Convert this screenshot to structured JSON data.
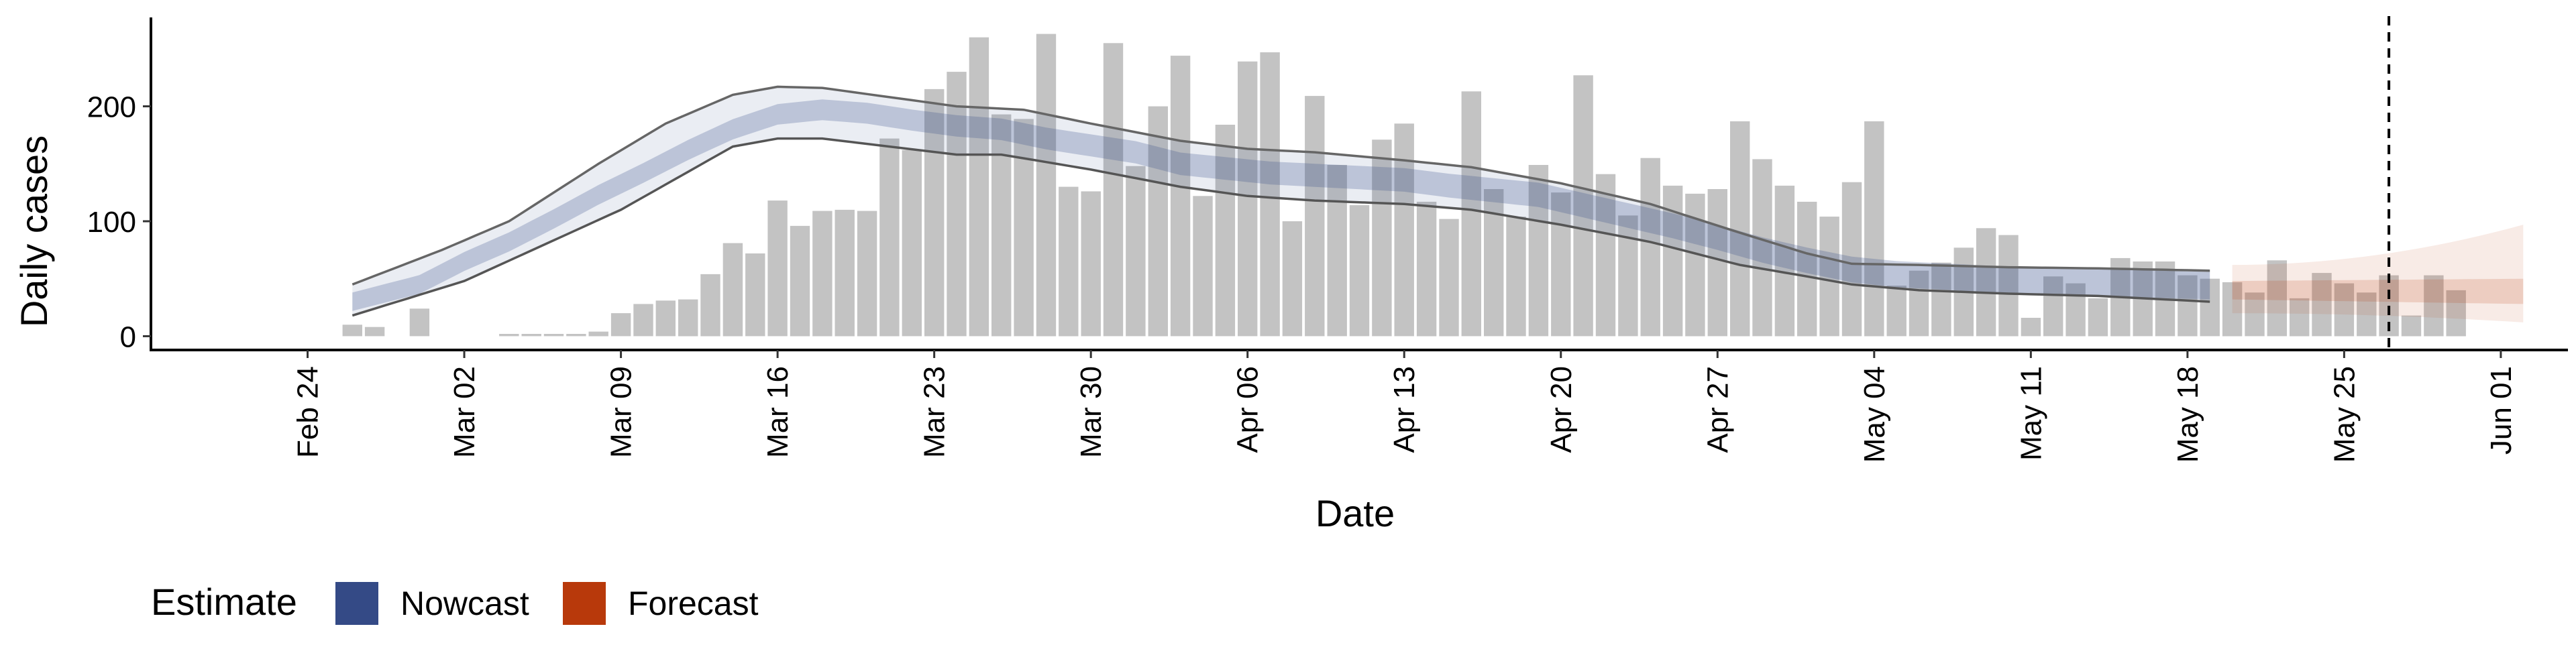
{
  "chart_data": {
    "type": "bar",
    "xlabel": "Date",
    "ylabel": "Daily cases",
    "ylim": [
      -12,
      275
    ],
    "y_ticks": [
      0,
      100,
      200
    ],
    "x_ticks": [
      {
        "date": "2020-02-24",
        "label": "Feb 24"
      },
      {
        "date": "2020-03-02",
        "label": "Mar 02"
      },
      {
        "date": "2020-03-09",
        "label": "Mar 09"
      },
      {
        "date": "2020-03-16",
        "label": "Mar 16"
      },
      {
        "date": "2020-03-23",
        "label": "Mar 23"
      },
      {
        "date": "2020-03-30",
        "label": "Mar 30"
      },
      {
        "date": "2020-04-06",
        "label": "Apr 06"
      },
      {
        "date": "2020-04-13",
        "label": "Apr 13"
      },
      {
        "date": "2020-04-20",
        "label": "Apr 20"
      },
      {
        "date": "2020-04-27",
        "label": "Apr 27"
      },
      {
        "date": "2020-05-04",
        "label": "May 04"
      },
      {
        "date": "2020-05-11",
        "label": "May 11"
      },
      {
        "date": "2020-05-18",
        "label": "May 18"
      },
      {
        "date": "2020-05-25",
        "label": "May 25"
      },
      {
        "date": "2020-06-01",
        "label": "Jun 01"
      }
    ],
    "x_range": [
      "2020-02-17",
      "2020-06-04"
    ],
    "grid": false,
    "legend": {
      "position": "bottom-left",
      "title": "Estimate",
      "items": [
        {
          "name": "Nowcast",
          "color": "#344a86"
        },
        {
          "name": "Forecast",
          "color": "#b8390b"
        }
      ]
    },
    "bar_color": "#bdbdbd",
    "vertical_line": {
      "date": "2020-05-27",
      "style": "dashed"
    },
    "reported_cases": {
      "start_date": "2020-02-26",
      "values": [
        10,
        8,
        0,
        24,
        0,
        0,
        0,
        2,
        2,
        2,
        2,
        4,
        20,
        28,
        31,
        32,
        54,
        81,
        72,
        118,
        96,
        109,
        110,
        109,
        172,
        162,
        215,
        230,
        260,
        193,
        189,
        263,
        130,
        126,
        255,
        148,
        200,
        244,
        122,
        184,
        239,
        247,
        100,
        209,
        149,
        114,
        171,
        185,
        117,
        102,
        213,
        128,
        104,
        149,
        125,
        227,
        141,
        105,
        155,
        131,
        124,
        128,
        187,
        154,
        131,
        117,
        104,
        134,
        187,
        44,
        57,
        64,
        77,
        94,
        88,
        16,
        52,
        46,
        33,
        68,
        65,
        65,
        53,
        50,
        47,
        38,
        66,
        33,
        55,
        46,
        38,
        53,
        18,
        53,
        40
      ]
    },
    "nowcast": {
      "start_date": "2020-02-26",
      "end_date": "2020-05-19",
      "color": "#344a86",
      "median_knots": [
        [
          "2020-02-26",
          30
        ],
        [
          "2020-02-29",
          45
        ],
        [
          "2020-03-02",
          65
        ],
        [
          "2020-03-04",
          82
        ],
        [
          "2020-03-06",
          102
        ],
        [
          "2020-03-08",
          123
        ],
        [
          "2020-03-10",
          142
        ],
        [
          "2020-03-12",
          162
        ],
        [
          "2020-03-14",
          180
        ],
        [
          "2020-03-16",
          193
        ],
        [
          "2020-03-18",
          197
        ],
        [
          "2020-03-20",
          194
        ],
        [
          "2020-03-22",
          188
        ],
        [
          "2020-03-24",
          183
        ],
        [
          "2020-03-26",
          180
        ],
        [
          "2020-03-28",
          172
        ],
        [
          "2020-03-30",
          166
        ],
        [
          "2020-04-01",
          160
        ],
        [
          "2020-04-03",
          150
        ],
        [
          "2020-04-05",
          146
        ],
        [
          "2020-04-07",
          142
        ],
        [
          "2020-04-09",
          140
        ],
        [
          "2020-04-11",
          138
        ],
        [
          "2020-04-13",
          136
        ],
        [
          "2020-04-15",
          131
        ],
        [
          "2020-04-17",
          127
        ],
        [
          "2020-04-19",
          123
        ],
        [
          "2020-04-21",
          114
        ],
        [
          "2020-04-23",
          105
        ],
        [
          "2020-04-25",
          96
        ],
        [
          "2020-04-27",
          86
        ],
        [
          "2020-04-29",
          75
        ],
        [
          "2020-05-01",
          66
        ],
        [
          "2020-05-03",
          58
        ],
        [
          "2020-05-05",
          54
        ],
        [
          "2020-05-07",
          52
        ],
        [
          "2020-05-09",
          50
        ],
        [
          "2020-05-11",
          48
        ],
        [
          "2020-05-13",
          47
        ],
        [
          "2020-05-15",
          46
        ],
        [
          "2020-05-17",
          45
        ],
        [
          "2020-05-19",
          44
        ]
      ],
      "inner_halfwidth": [
        8,
        12
      ],
      "outer_lower": [
        [
          "2020-02-26",
          18
        ],
        [
          "2020-03-02",
          48
        ],
        [
          "2020-03-09",
          110
        ],
        [
          "2020-03-14",
          165
        ],
        [
          "2020-03-16",
          172
        ],
        [
          "2020-03-18",
          172
        ],
        [
          "2020-03-21",
          165
        ],
        [
          "2020-03-24",
          158
        ],
        [
          "2020-03-26",
          158
        ],
        [
          "2020-03-30",
          145
        ],
        [
          "2020-04-03",
          130
        ],
        [
          "2020-04-06",
          122
        ],
        [
          "2020-04-09",
          118
        ],
        [
          "2020-04-13",
          115
        ],
        [
          "2020-04-16",
          110
        ],
        [
          "2020-04-20",
          97
        ],
        [
          "2020-04-24",
          82
        ],
        [
          "2020-04-28",
          62
        ],
        [
          "2020-05-01",
          52
        ],
        [
          "2020-05-03",
          45
        ],
        [
          "2020-05-06",
          40
        ],
        [
          "2020-05-10",
          37
        ],
        [
          "2020-05-14",
          35
        ],
        [
          "2020-05-19",
          30
        ]
      ],
      "outer_upper": [
        [
          "2020-02-26",
          45
        ],
        [
          "2020-03-01",
          75
        ],
        [
          "2020-03-04",
          100
        ],
        [
          "2020-03-08",
          150
        ],
        [
          "2020-03-11",
          185
        ],
        [
          "2020-03-14",
          210
        ],
        [
          "2020-03-16",
          217
        ],
        [
          "2020-03-18",
          216
        ],
        [
          "2020-03-21",
          208
        ],
        [
          "2020-03-24",
          200
        ],
        [
          "2020-03-27",
          197
        ],
        [
          "2020-03-30",
          185
        ],
        [
          "2020-04-03",
          170
        ],
        [
          "2020-04-06",
          163
        ],
        [
          "2020-04-09",
          160
        ],
        [
          "2020-04-13",
          153
        ],
        [
          "2020-04-16",
          147
        ],
        [
          "2020-04-20",
          133
        ],
        [
          "2020-04-24",
          115
        ],
        [
          "2020-04-28",
          90
        ],
        [
          "2020-05-01",
          72
        ],
        [
          "2020-05-03",
          63
        ],
        [
          "2020-05-06",
          62
        ],
        [
          "2020-05-10",
          60
        ],
        [
          "2020-05-14",
          59
        ],
        [
          "2020-05-19",
          57
        ]
      ]
    },
    "forecast": {
      "start_date": "2020-05-20",
      "end_date": "2020-06-02",
      "color": "#b8390b",
      "median": [
        40,
        40
      ],
      "inner": [
        [
          32,
          48
        ],
        [
          28,
          50
        ]
      ],
      "outer": [
        [
          20,
          62
        ],
        [
          12,
          97
        ]
      ]
    }
  }
}
